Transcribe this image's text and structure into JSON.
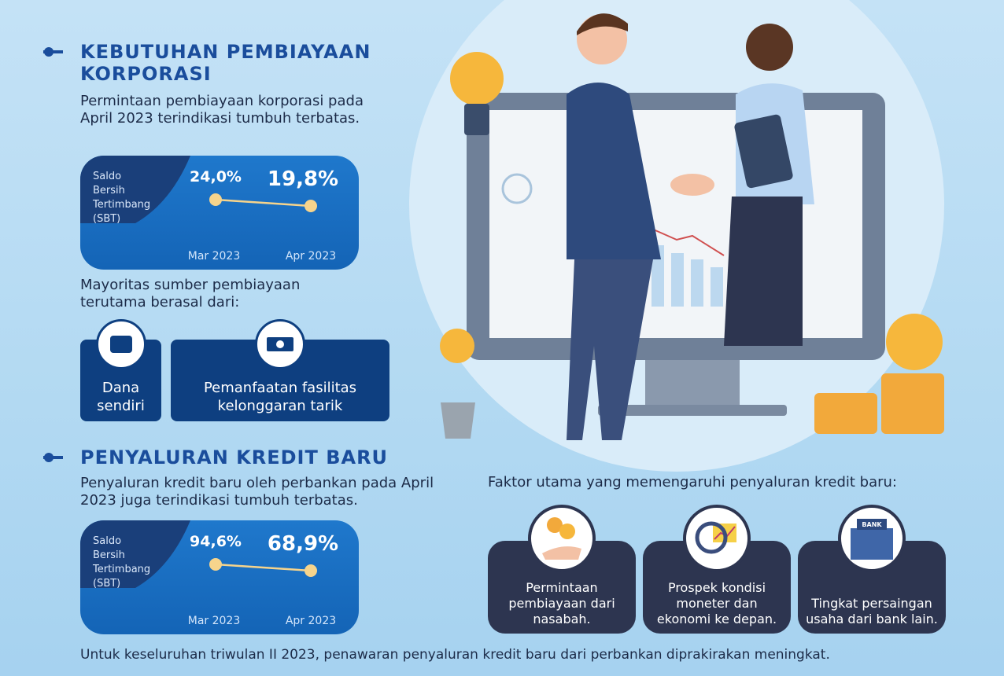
{
  "section_1": {
    "title": "KEBUTUHAN PEMBIAYAAN KORPORASI",
    "text": "Permintaan pembiayaan korporasi pada April 2023 terindikasi tumbuh terbatas.",
    "sources_intro": "Mayoritas sumber pembiayaan terutama berasal dari:",
    "sources": [
      "Dana sendiri",
      "Pemanfaatan fasilitas kelonggaran tarik"
    ]
  },
  "section_2": {
    "title": "PENYALURAN KREDIT BARU",
    "text": "Penyaluran kredit baru oleh perbankan pada April 2023 juga terindikasi tumbuh terbatas.",
    "factors_intro": "Faktor utama yang memengaruhi penyaluran kredit baru:",
    "factors": [
      "Permintaan pembiayaan dari nasabah.",
      "Prospek kondisi moneter dan ekonomi ke depan.",
      "Tingkat persaingan usaha dari bank lain."
    ],
    "bank_sign": "BANK"
  },
  "chart_data": [
    {
      "type": "line",
      "title": "Saldo Bersih Tertimbang (SBT)",
      "categories": [
        "Mar 2023",
        "Apr 2023"
      ],
      "values": [
        24.0,
        19.8
      ],
      "value_labels": [
        "24,0%",
        "19,8%"
      ],
      "color": "#f6d48c"
    },
    {
      "type": "line",
      "title": "Saldo Bersih Tertimbang (SBT)",
      "categories": [
        "Mar 2023",
        "Apr 2023"
      ],
      "values": [
        94.6,
        68.9
      ],
      "value_labels": [
        "94,6%",
        "68,9%"
      ],
      "color": "#f6d48c"
    }
  ],
  "footer": "Untuk keseluruhan triwulan II 2023, penawaran penyaluran kredit baru dari perbankan diprakirakan meningkat."
}
